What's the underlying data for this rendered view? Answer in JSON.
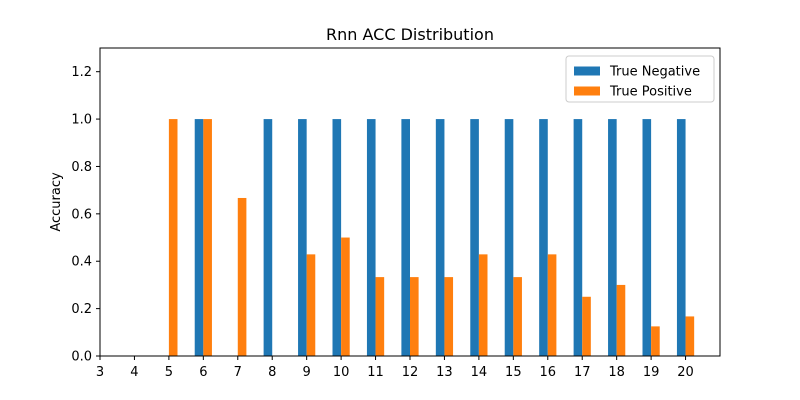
{
  "chart_data": {
    "type": "bar",
    "title": "Rnn ACC Distribution",
    "xlabel": "",
    "ylabel": "Accuracy",
    "categories": [
      "3",
      "4",
      "5",
      "6",
      "7",
      "8",
      "9",
      "10",
      "11",
      "12",
      "13",
      "14",
      "15",
      "16",
      "17",
      "18",
      "19",
      "20"
    ],
    "series": [
      {
        "name": "True Negative",
        "color": "#1f77b4",
        "values": [
          0,
          0,
          0,
          1.0,
          0,
          1.0,
          1.0,
          1.0,
          1.0,
          1.0,
          1.0,
          1.0,
          1.0,
          1.0,
          1.0,
          1.0,
          1.0,
          1.0
        ]
      },
      {
        "name": "True Positive",
        "color": "#ff7f0e",
        "values": [
          0,
          0,
          1.0,
          1.0,
          0.667,
          0,
          0.429,
          0.5,
          0.333,
          0.333,
          0.333,
          0.429,
          0.333,
          0.429,
          0.25,
          0.3,
          0.125,
          0.167
        ]
      }
    ],
    "xlim": [
      3,
      21
    ],
    "ylim": [
      0,
      1.3
    ],
    "yticks": [
      0.0,
      0.2,
      0.4,
      0.6,
      0.8,
      1.0,
      1.2
    ],
    "ytick_labels": [
      "0.0",
      "0.2",
      "0.4",
      "0.6",
      "0.8",
      "1.0",
      "1.2"
    ],
    "grid": false,
    "legend_position": "top-right"
  }
}
